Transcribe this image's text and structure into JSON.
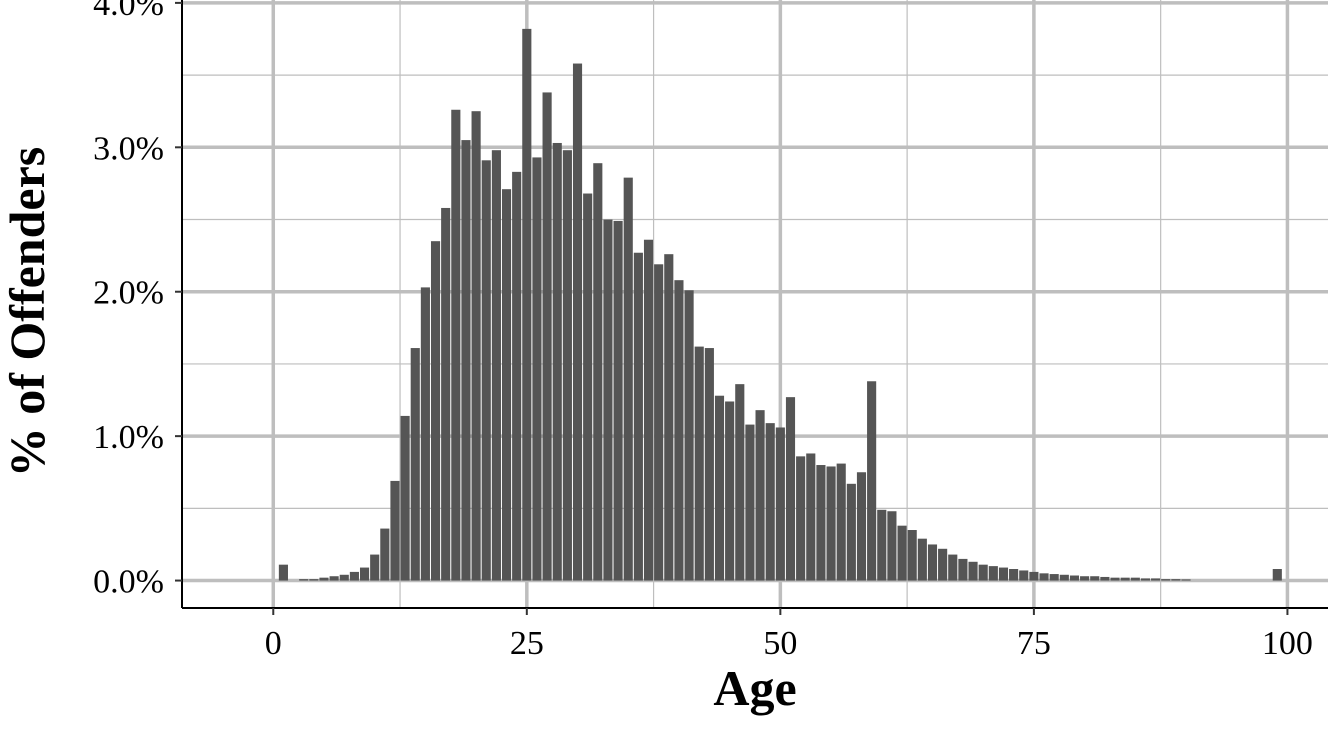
{
  "chart_data": {
    "type": "bar",
    "xlabel": "Age",
    "ylabel": "% of Offenders",
    "xlim": [
      -9,
      104
    ],
    "ylim": [
      -0.19,
      4.02
    ],
    "x_ticks": [
      0,
      25,
      50,
      75,
      100
    ],
    "x_tick_labels": [
      "0",
      "25",
      "50",
      "75",
      "100"
    ],
    "y_ticks": [
      0,
      1,
      2,
      3,
      4
    ],
    "y_tick_labels": [
      "0.0%",
      "1.0%",
      "2.0%",
      "3.0%",
      "4.0%"
    ],
    "grid": true,
    "bar_color": "#555555",
    "grid_color": "#bebebe",
    "x": [
      1,
      3,
      4,
      5,
      6,
      7,
      8,
      9,
      10,
      11,
      12,
      13,
      14,
      15,
      16,
      17,
      18,
      19,
      20,
      21,
      22,
      23,
      24,
      25,
      26,
      27,
      28,
      29,
      30,
      31,
      32,
      33,
      34,
      35,
      36,
      37,
      38,
      39,
      40,
      41,
      42,
      43,
      44,
      45,
      46,
      47,
      48,
      49,
      50,
      51,
      52,
      53,
      54,
      55,
      56,
      57,
      58,
      59,
      60,
      61,
      62,
      63,
      64,
      65,
      66,
      67,
      68,
      69,
      70,
      71,
      72,
      73,
      74,
      75,
      76,
      77,
      78,
      79,
      80,
      81,
      82,
      83,
      84,
      85,
      86,
      87,
      88,
      89,
      90,
      99
    ],
    "values": [
      0.11,
      0.01,
      0.01,
      0.02,
      0.03,
      0.04,
      0.06,
      0.09,
      0.18,
      0.36,
      0.69,
      1.14,
      1.61,
      2.03,
      2.35,
      2.58,
      3.26,
      3.05,
      3.25,
      2.91,
      2.98,
      2.71,
      2.83,
      3.82,
      2.93,
      3.38,
      3.03,
      2.98,
      3.58,
      2.68,
      2.89,
      2.5,
      2.49,
      2.79,
      2.27,
      2.36,
      2.19,
      2.26,
      2.08,
      2.01,
      1.62,
      1.61,
      1.28,
      1.24,
      1.36,
      1.08,
      1.18,
      1.09,
      1.06,
      1.27,
      0.86,
      0.88,
      0.8,
      0.79,
      0.81,
      0.67,
      0.75,
      1.38,
      0.49,
      0.48,
      0.38,
      0.35,
      0.29,
      0.25,
      0.22,
      0.18,
      0.15,
      0.13,
      0.11,
      0.1,
      0.09,
      0.08,
      0.07,
      0.06,
      0.05,
      0.045,
      0.04,
      0.035,
      0.03,
      0.03,
      0.025,
      0.02,
      0.02,
      0.02,
      0.015,
      0.015,
      0.01,
      0.01,
      0.008,
      0.08
    ]
  }
}
